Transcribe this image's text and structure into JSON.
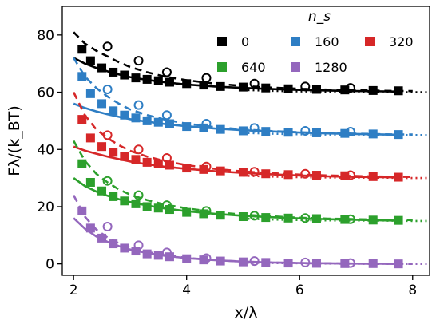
{
  "chart_data": {
    "type": "scatter",
    "xlabel": "x/λ",
    "ylabel": "Fλ/(k_BT)",
    "xlim": [
      1.8,
      8.3
    ],
    "ylim": [
      -4,
      90
    ],
    "xticks": [
      2,
      4,
      6,
      8
    ],
    "yticks": [
      0,
      20,
      40,
      60,
      80
    ],
    "grid": false,
    "legend": {
      "title": "n_s",
      "placement": "top-right",
      "columns": 3
    },
    "series": [
      {
        "name": "0",
        "color": "#000000",
        "offset": 60,
        "squares": {
          "x": [
            2.15,
            2.3,
            2.5,
            2.7,
            2.9,
            3.1,
            3.3,
            3.5,
            3.7,
            4.0,
            4.3,
            4.6,
            5.0,
            5.4,
            5.8,
            6.3,
            6.8,
            7.3,
            7.75
          ],
          "y": [
            75,
            71,
            68.5,
            67,
            66,
            65,
            64.5,
            64,
            63.5,
            63,
            62.5,
            62,
            61.8,
            61.5,
            61.2,
            61,
            60.8,
            60.6,
            60.5
          ]
        },
        "circles": {
          "x": [
            2.6,
            3.15,
            3.65,
            4.35,
            5.2,
            6.1,
            6.9
          ],
          "y": [
            76,
            71,
            67,
            65,
            63,
            62,
            61.5
          ]
        },
        "dashed": {
          "x": [
            2.0,
            2.2,
            2.4,
            2.6,
            2.8,
            3.0,
            3.3,
            3.6,
            4.0,
            4.5,
            5.0,
            5.5,
            6.0,
            6.5,
            7.0,
            7.5,
            8.0
          ],
          "y": [
            81,
            77,
            74.5,
            72.5,
            70.5,
            68.8,
            67,
            65.5,
            64.2,
            63,
            62.2,
            61.6,
            61.2,
            60.9,
            60.7,
            60.5,
            60.4
          ]
        },
        "solid": {
          "x": [
            2.0,
            2.2,
            2.4,
            2.6,
            2.8,
            3.0,
            3.3,
            3.6,
            4.0,
            4.5,
            5.0,
            5.5,
            6.0,
            6.5,
            7.0,
            7.5,
            7.8
          ],
          "y": [
            72,
            70,
            68.5,
            67.3,
            66.2,
            65.3,
            64.3,
            63.5,
            62.7,
            62,
            61.5,
            61.1,
            60.8,
            60.6,
            60.4,
            60.3,
            60.2
          ]
        },
        "dotted": {
          "x": [
            5.0,
            5.5,
            6.0,
            6.5,
            7.0,
            7.5,
            8.0,
            8.3
          ],
          "y": [
            60.8,
            60.5,
            60.3,
            60.2,
            60.1,
            60.1,
            60.0,
            60.0
          ]
        }
      },
      {
        "name": "160",
        "color": "#2e7ec4",
        "offset": 45,
        "squares": {
          "x": [
            2.15,
            2.3,
            2.5,
            2.7,
            2.9,
            3.1,
            3.3,
            3.5,
            3.7,
            4.0,
            4.3,
            4.6,
            5.0,
            5.4,
            5.8,
            6.3,
            6.8,
            7.3,
            7.75
          ],
          "y": [
            65.5,
            59.5,
            56,
            53.5,
            52,
            51,
            50,
            49.5,
            49,
            48,
            47.5,
            47,
            46.5,
            46.3,
            46,
            45.8,
            45.6,
            45.4,
            45.2
          ]
        },
        "circles": {
          "x": [
            2.6,
            3.15,
            3.65,
            4.35,
            5.2,
            6.1,
            6.9
          ],
          "y": [
            61,
            55.5,
            52,
            49,
            47.5,
            46.5,
            46.2
          ]
        },
        "dashed": {
          "x": [
            2.0,
            2.2,
            2.4,
            2.6,
            2.8,
            3.0,
            3.3,
            3.6,
            4.0,
            4.5,
            5.0,
            5.5,
            6.0,
            6.5,
            7.0,
            7.5,
            8.0
          ],
          "y": [
            72,
            65.5,
            61.5,
            58.5,
            56,
            54,
            52,
            50.5,
            49,
            47.8,
            47,
            46.4,
            46,
            45.7,
            45.5,
            45.3,
            45.2
          ]
        },
        "solid": {
          "x": [
            2.0,
            2.2,
            2.4,
            2.6,
            2.8,
            3.0,
            3.3,
            3.6,
            4.0,
            4.5,
            5.0,
            5.5,
            6.0,
            6.5,
            7.0,
            7.5,
            7.8
          ],
          "y": [
            56,
            54.5,
            53.3,
            52.3,
            51.4,
            50.6,
            49.7,
            48.9,
            48.1,
            47.3,
            46.7,
            46.3,
            45.9,
            45.6,
            45.4,
            45.2,
            45.1
          ]
        },
        "dotted": {
          "x": [
            5.0,
            5.5,
            6.0,
            6.5,
            7.0,
            7.5,
            8.0,
            8.3
          ],
          "y": [
            45.8,
            45.5,
            45.3,
            45.2,
            45.1,
            45.1,
            45.0,
            45.0
          ]
        }
      },
      {
        "name": "320",
        "color": "#d62728",
        "offset": 30,
        "squares": {
          "x": [
            2.15,
            2.3,
            2.5,
            2.7,
            2.9,
            3.1,
            3.3,
            3.5,
            3.7,
            4.0,
            4.3,
            4.6,
            5.0,
            5.4,
            5.8,
            6.3,
            6.8,
            7.3,
            7.75
          ],
          "y": [
            50.5,
            44,
            41,
            39,
            37.5,
            36.5,
            35.5,
            35,
            34.5,
            33.5,
            33,
            32.5,
            32,
            31.5,
            31.2,
            31,
            30.8,
            30.5,
            30.3
          ]
        },
        "circles": {
          "x": [
            2.6,
            3.15,
            3.65,
            4.35,
            5.2,
            6.1,
            6.9
          ],
          "y": [
            45,
            40,
            37,
            34,
            32.2,
            31.5,
            31
          ]
        },
        "dashed": {
          "x": [
            2.0,
            2.2,
            2.4,
            2.6,
            2.8,
            3.0,
            3.3,
            3.6,
            4.0,
            4.5,
            5.0,
            5.5,
            6.0,
            6.5,
            7.0,
            7.5,
            8.0
          ],
          "y": [
            60,
            52,
            47,
            44,
            41.5,
            39.5,
            37.5,
            36,
            34.5,
            33.2,
            32.3,
            31.7,
            31.2,
            30.9,
            30.7,
            30.5,
            30.4
          ]
        },
        "solid": {
          "x": [
            2.0,
            2.2,
            2.4,
            2.6,
            2.8,
            3.0,
            3.3,
            3.6,
            4.0,
            4.5,
            5.0,
            5.5,
            6.0,
            6.5,
            7.0,
            7.5,
            7.8
          ],
          "y": [
            41,
            39.6,
            38.5,
            37.5,
            36.6,
            35.8,
            34.8,
            34,
            33.2,
            32.4,
            31.8,
            31.3,
            30.9,
            30.6,
            30.4,
            30.3,
            30.2
          ]
        },
        "dotted": {
          "x": [
            5.0,
            5.5,
            6.0,
            6.5,
            7.0,
            7.5,
            8.0,
            8.3
          ],
          "y": [
            30.8,
            30.5,
            30.3,
            30.2,
            30.1,
            30.1,
            30.0,
            30.0
          ]
        }
      },
      {
        "name": "640",
        "color": "#2ca02c",
        "offset": 15,
        "squares": {
          "x": [
            2.15,
            2.3,
            2.5,
            2.7,
            2.9,
            3.1,
            3.3,
            3.5,
            3.7,
            4.0,
            4.3,
            4.6,
            5.0,
            5.4,
            5.8,
            6.3,
            6.8,
            7.3,
            7.75
          ],
          "y": [
            35,
            28.5,
            25.5,
            23.5,
            22,
            21,
            20,
            19.5,
            19,
            18,
            17.5,
            17,
            16.5,
            16.2,
            16,
            15.8,
            15.5,
            15.3,
            15.2
          ]
        },
        "circles": {
          "x": [
            2.6,
            3.15,
            3.65,
            4.35,
            5.2,
            6.1,
            6.9
          ],
          "y": [
            29,
            24,
            20.5,
            18.5,
            16.8,
            16,
            15.6
          ]
        },
        "dashed": {
          "x": [
            2.0,
            2.2,
            2.4,
            2.6,
            2.8,
            3.0,
            3.3,
            3.6,
            4.0,
            4.5,
            5.0,
            5.5,
            6.0,
            6.5,
            7.0,
            7.5,
            8.0
          ],
          "y": [
            43,
            36,
            31.5,
            28.5,
            26,
            24.2,
            22.3,
            20.8,
            19.4,
            18.1,
            17.2,
            16.6,
            16.1,
            15.8,
            15.6,
            15.4,
            15.3
          ]
        },
        "solid": {
          "x": [
            2.0,
            2.2,
            2.4,
            2.6,
            2.8,
            3.0,
            3.3,
            3.6,
            4.0,
            4.5,
            5.0,
            5.5,
            6.0,
            6.5,
            7.0,
            7.5,
            7.8
          ],
          "y": [
            30,
            27.2,
            25.3,
            23.8,
            22.6,
            21.6,
            20.4,
            19.4,
            18.4,
            17.5,
            16.8,
            16.3,
            15.9,
            15.6,
            15.4,
            15.2,
            15.1
          ]
        },
        "dotted": {
          "x": [
            5.0,
            5.5,
            6.0,
            6.5,
            7.0,
            7.5,
            8.0,
            8.3
          ],
          "y": [
            15.8,
            15.5,
            15.3,
            15.2,
            15.1,
            15.1,
            15.0,
            15.0
          ]
        }
      },
      {
        "name": "1280",
        "color": "#9467bd",
        "offset": 0,
        "squares": {
          "x": [
            2.15,
            2.3,
            2.5,
            2.7,
            2.9,
            3.1,
            3.3,
            3.5,
            3.7,
            4.0,
            4.3,
            4.6,
            5.0,
            5.4,
            5.8,
            6.3,
            6.8,
            7.3,
            7.75
          ],
          "y": [
            18.5,
            12.5,
            9,
            7,
            5.5,
            4.5,
            3.5,
            3,
            2.5,
            1.8,
            1.4,
            1,
            0.7,
            0.5,
            0.3,
            0.2,
            0.1,
            0.1,
            0
          ]
        },
        "circles": {
          "x": [
            2.6,
            3.15,
            3.65,
            4.35,
            5.2,
            6.1,
            6.9
          ],
          "y": [
            13,
            6.5,
            4,
            2,
            1,
            0.5,
            0.3
          ]
        },
        "dashed": {
          "x": [
            2.0,
            2.2,
            2.4,
            2.6,
            2.8,
            3.0,
            3.3,
            3.6,
            4.0,
            4.5,
            5.0,
            5.5,
            6.0,
            6.5,
            7.0,
            7.5,
            8.0
          ],
          "y": [
            24,
            16.5,
            12,
            9.2,
            7.2,
            5.7,
            4.2,
            3.1,
            2.1,
            1.3,
            0.8,
            0.5,
            0.3,
            0.2,
            0.1,
            0.05,
            0
          ]
        },
        "solid": {
          "x": [
            2.0,
            2.2,
            2.4,
            2.6,
            2.8,
            3.0,
            3.3,
            3.6,
            4.0,
            4.5,
            5.0,
            5.5,
            6.0,
            6.5,
            7.0,
            7.5,
            7.8
          ],
          "y": [
            16,
            12.3,
            9.6,
            7.7,
            6.2,
            5,
            3.8,
            2.9,
            2,
            1.3,
            0.8,
            0.5,
            0.3,
            0.2,
            0.1,
            0.05,
            0
          ]
        },
        "dotted": {
          "x": [
            5.0,
            5.5,
            6.0,
            6.5,
            7.0,
            7.5,
            8.0,
            8.3
          ],
          "y": [
            0.5,
            0.3,
            0.2,
            0.1,
            0.05,
            0,
            0,
            0
          ]
        }
      }
    ]
  }
}
